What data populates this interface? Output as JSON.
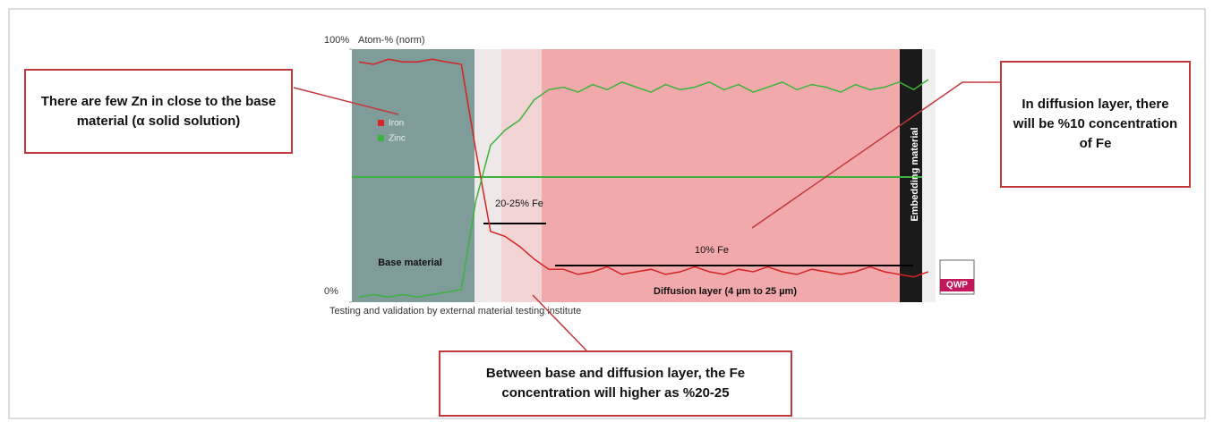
{
  "chart_data": {
    "type": "line",
    "ylabel": "Atom-% (norm)",
    "categories": [
      null,
      null,
      null,
      null,
      null,
      null,
      null,
      null,
      null,
      null,
      null,
      null,
      null,
      null,
      null,
      null,
      null,
      null,
      null,
      null,
      null,
      null,
      null,
      null,
      null,
      null,
      null,
      null,
      null,
      null,
      null,
      null,
      null,
      null,
      null,
      null,
      null,
      null,
      null,
      null
    ],
    "series": [
      {
        "name": "Iron",
        "color": "#d42424",
        "values": [
          95,
          94,
          96,
          95,
          95,
          96,
          95,
          94,
          60,
          28,
          26,
          22,
          17,
          13,
          13,
          11,
          12,
          14,
          11,
          12,
          13,
          11,
          12,
          14,
          12,
          11,
          13,
          12,
          14,
          12,
          11,
          13,
          12,
          11,
          12,
          14,
          12,
          11,
          10,
          12
        ]
      },
      {
        "name": "Zinc",
        "color": "#3cb43c",
        "values": [
          2,
          3,
          2,
          3,
          2,
          3,
          4,
          5,
          40,
          62,
          68,
          72,
          80,
          84,
          85,
          83,
          86,
          84,
          87,
          85,
          83,
          86,
          84,
          85,
          87,
          84,
          86,
          83,
          85,
          87,
          84,
          86,
          85,
          83,
          86,
          84,
          85,
          87,
          84,
          88
        ]
      }
    ],
    "ylim": [
      0,
      100
    ],
    "yticks": [
      {
        "value": 0,
        "label": "0%"
      },
      {
        "value": 100,
        "label": "100%"
      }
    ],
    "grid": false,
    "annotations": [
      "20-25% Fe",
      "10% Fe",
      "Base material",
      "Diffusion layer (4 µm to 25 µm)",
      "Embedding material",
      "QWP"
    ],
    "caption": "Testing and validation by external material testing institute"
  },
  "callouts": [
    "There are few Zn in close to the base material (α solid solution)",
    "In diffusion layer, there  will be %10 concentration of Fe",
    "Between base and diffusion layer, the Fe concentration will higher as %20-25"
  ]
}
